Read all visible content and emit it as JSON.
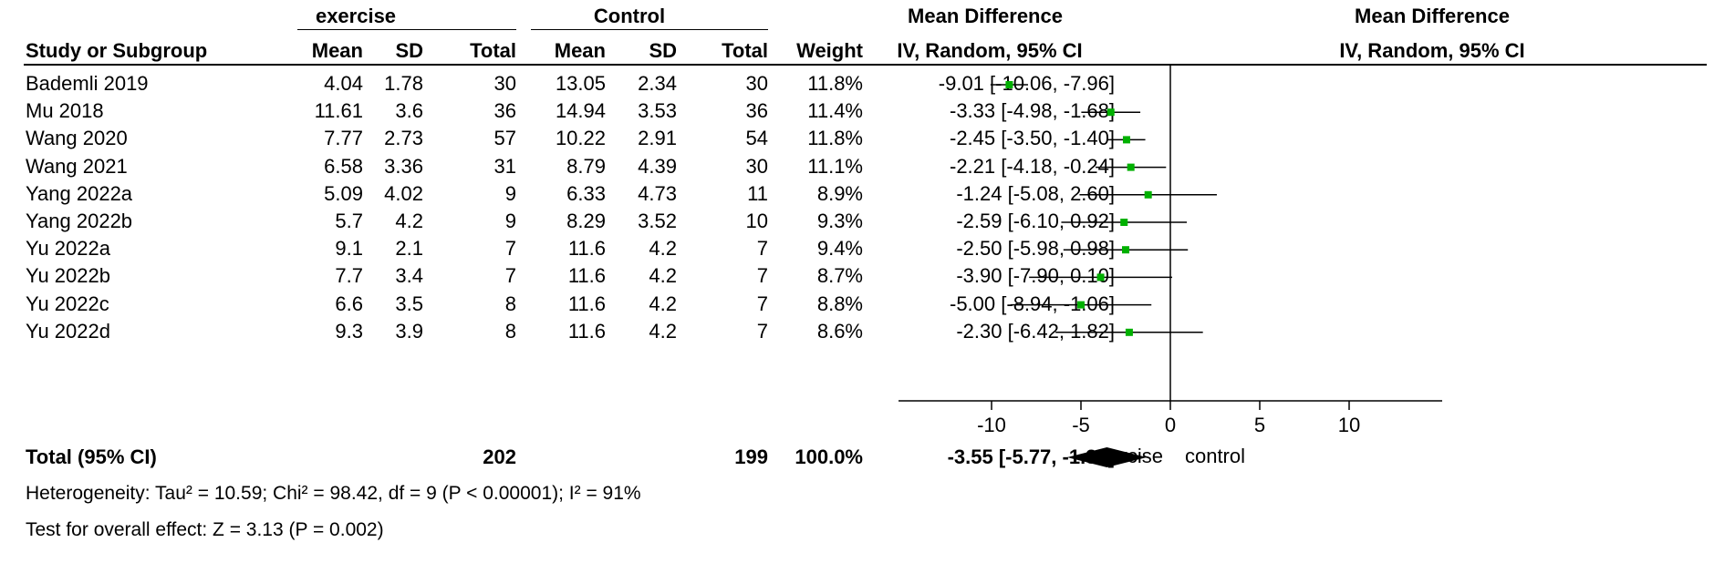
{
  "headers": {
    "group1": "exercise",
    "group2": "Control",
    "md": "Mean Difference",
    "md_method": "IV, Random, 95% CI",
    "plot_md": "Mean Difference",
    "plot_method": "IV, Random, 95% CI",
    "study": "Study or Subgroup",
    "mean1": "Mean",
    "sd1": "SD",
    "total1": "Total",
    "mean2": "Mean",
    "sd2": "SD",
    "total2": "Total",
    "weight": "Weight"
  },
  "rows": [
    {
      "study": "Bademli 2019",
      "mean1": "4.04",
      "sd1": "1.78",
      "total1": "30",
      "mean2": "13.05",
      "sd2": "2.34",
      "total2": "30",
      "weight": "11.8%",
      "ci": "-9.01 [-10.06, -7.96]"
    },
    {
      "study": "Mu 2018",
      "mean1": "11.61",
      "sd1": "3.6",
      "total1": "36",
      "mean2": "14.94",
      "sd2": "3.53",
      "total2": "36",
      "weight": "11.4%",
      "ci": "-3.33 [-4.98, -1.68]"
    },
    {
      "study": "Wang 2020",
      "mean1": "7.77",
      "sd1": "2.73",
      "total1": "57",
      "mean2": "10.22",
      "sd2": "2.91",
      "total2": "54",
      "weight": "11.8%",
      "ci": "-2.45 [-3.50, -1.40]"
    },
    {
      "study": "Wang 2021",
      "mean1": "6.58",
      "sd1": "3.36",
      "total1": "31",
      "mean2": "8.79",
      "sd2": "4.39",
      "total2": "30",
      "weight": "11.1%",
      "ci": "-2.21 [-4.18, -0.24]"
    },
    {
      "study": "Yang 2022a",
      "mean1": "5.09",
      "sd1": "4.02",
      "total1": "9",
      "mean2": "6.33",
      "sd2": "4.73",
      "total2": "11",
      "weight": "8.9%",
      "ci": "-1.24 [-5.08, 2.60]"
    },
    {
      "study": "Yang 2022b",
      "mean1": "5.7",
      "sd1": "4.2",
      "total1": "9",
      "mean2": "8.29",
      "sd2": "3.52",
      "total2": "10",
      "weight": "9.3%",
      "ci": "-2.59 [-6.10, 0.92]"
    },
    {
      "study": "Yu 2022a",
      "mean1": "9.1",
      "sd1": "2.1",
      "total1": "7",
      "mean2": "11.6",
      "sd2": "4.2",
      "total2": "7",
      "weight": "9.4%",
      "ci": "-2.50 [-5.98, 0.98]"
    },
    {
      "study": "Yu 2022b",
      "mean1": "7.7",
      "sd1": "3.4",
      "total1": "7",
      "mean2": "11.6",
      "sd2": "4.2",
      "total2": "7",
      "weight": "8.7%",
      "ci": "-3.90 [-7.90, 0.10]"
    },
    {
      "study": "Yu 2022c",
      "mean1": "6.6",
      "sd1": "3.5",
      "total1": "8",
      "mean2": "11.6",
      "sd2": "4.2",
      "total2": "7",
      "weight": "8.8%",
      "ci": "-5.00 [-8.94, -1.06]"
    },
    {
      "study": "Yu 2022d",
      "mean1": "9.3",
      "sd1": "3.9",
      "total1": "8",
      "mean2": "11.6",
      "sd2": "4.2",
      "total2": "7",
      "weight": "8.6%",
      "ci": "-2.30 [-6.42, 1.82]"
    }
  ],
  "total": {
    "label": "Total (95% CI)",
    "total1": "202",
    "total2": "199",
    "weight": "100.0%",
    "ci": "-3.55 [-5.77, -1.32]"
  },
  "heterogeneity": "Heterogeneity: Tau² = 10.59; Chi² = 98.42, df = 9 (P < 0.00001); I² = 91%",
  "overall_effect": "Test for overall effect: Z = 3.13 (P = 0.002)",
  "colors": {
    "point": "#00b000",
    "line": "#000000",
    "diamond": "#000000"
  },
  "chart_data": {
    "type": "scatter",
    "title": "",
    "xlabel": "",
    "xlim": [
      -15,
      15
    ],
    "xticks": [
      -10,
      -5,
      0,
      5,
      10
    ],
    "xtick_labels": [
      "-10",
      "-5",
      "0",
      "5",
      "10"
    ],
    "favours_left": "exercise",
    "favours_right": "control",
    "series": [
      {
        "values": [
          {
            "study": "Bademli 2019",
            "md": -9.01,
            "lo": -10.06,
            "hi": -7.96
          },
          {
            "study": "Mu 2018",
            "md": -3.33,
            "lo": -4.98,
            "hi": -1.68
          },
          {
            "study": "Wang 2020",
            "md": -2.45,
            "lo": -3.5,
            "hi": -1.4
          },
          {
            "study": "Wang 2021",
            "md": -2.21,
            "lo": -4.18,
            "hi": -0.24
          },
          {
            "study": "Yang 2022a",
            "md": -1.24,
            "lo": -5.08,
            "hi": 2.6
          },
          {
            "study": "Yang 2022b",
            "md": -2.59,
            "lo": -6.1,
            "hi": 0.92
          },
          {
            "study": "Yu 2022a",
            "md": -2.5,
            "lo": -5.98,
            "hi": 0.98
          },
          {
            "study": "Yu 2022b",
            "md": -3.9,
            "lo": -7.9,
            "hi": 0.1
          },
          {
            "study": "Yu 2022c",
            "md": -5.0,
            "lo": -8.94,
            "hi": -1.06
          },
          {
            "study": "Yu 2022d",
            "md": -2.3,
            "lo": -6.42,
            "hi": 1.82
          }
        ]
      }
    ],
    "pooled": {
      "md": -3.55,
      "lo": -5.77,
      "hi": -1.32
    }
  }
}
